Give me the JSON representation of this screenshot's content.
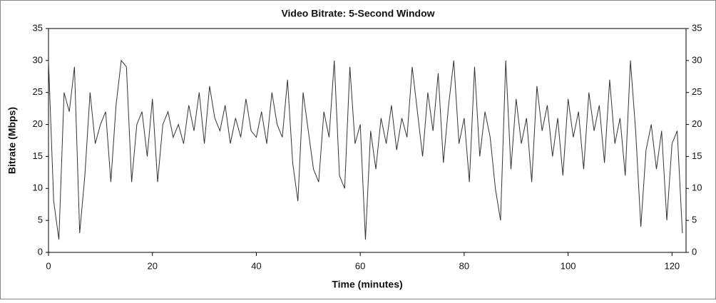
{
  "chart_data": {
    "type": "line",
    "title": "Video Bitrate: 5-Second Window",
    "x_label": "Time (minutes)",
    "y_label": "Bitrate (Mbps)",
    "x": [
      0,
      1,
      2,
      3,
      4,
      5,
      6,
      7,
      8,
      9,
      10,
      11,
      12,
      13,
      14,
      15,
      16,
      17,
      18,
      19,
      20,
      21,
      22,
      23,
      24,
      25,
      26,
      27,
      28,
      29,
      30,
      31,
      32,
      33,
      34,
      35,
      36,
      37,
      38,
      39,
      40,
      41,
      42,
      43,
      44,
      45,
      46,
      47,
      48,
      49,
      50,
      51,
      52,
      53,
      54,
      55,
      56,
      57,
      58,
      59,
      60,
      61,
      62,
      63,
      64,
      65,
      66,
      67,
      68,
      69,
      70,
      71,
      72,
      73,
      74,
      75,
      76,
      77,
      78,
      79,
      80,
      81,
      82,
      83,
      84,
      85,
      86,
      87,
      88,
      89,
      90,
      91,
      92,
      93,
      94,
      95,
      96,
      97,
      98,
      99,
      100,
      101,
      102,
      103,
      104,
      105,
      106,
      107,
      108,
      109,
      110,
      111,
      112,
      113,
      114,
      115,
      116,
      117,
      118,
      119,
      120,
      121,
      122
    ],
    "series": [
      {
        "color": "#333333",
        "values": [
          30,
          8,
          2,
          25,
          22,
          29,
          3,
          12,
          25,
          17,
          20,
          22,
          11,
          23,
          30,
          29,
          11,
          20,
          22,
          15,
          24,
          11,
          20,
          22,
          18,
          20,
          17,
          23,
          19,
          25,
          17,
          26,
          21,
          19,
          23,
          17,
          21,
          18,
          24,
          19,
          18,
          22,
          17,
          25,
          20,
          18,
          27,
          14,
          8,
          25,
          19,
          13,
          11,
          22,
          18,
          30,
          12,
          10,
          29,
          17,
          20,
          2,
          19,
          13,
          21,
          17,
          23,
          16,
          21,
          18,
          29,
          22,
          15,
          25,
          19,
          28,
          14,
          23,
          30,
          17,
          21,
          11,
          29,
          15,
          22,
          18,
          10,
          5,
          30,
          13,
          24,
          17,
          21,
          11,
          26,
          19,
          23,
          15,
          21,
          12,
          24,
          18,
          22,
          13,
          25,
          19,
          23,
          14,
          27,
          17,
          21,
          12,
          30,
          19,
          4,
          16,
          20,
          13,
          19,
          5,
          17,
          19,
          3
        ]
      }
    ],
    "xlim": [
      0,
      122.7
    ],
    "xticks": [
      0,
      20,
      40,
      60,
      80,
      100,
      120
    ],
    "ylim": [
      0,
      35
    ],
    "yticks": [
      0,
      5,
      10,
      15,
      20,
      25,
      30,
      35
    ],
    "y2lim": [
      0,
      35
    ],
    "y2ticks": [
      0,
      5,
      10,
      15,
      20,
      25,
      30,
      35
    ],
    "grid": false
  }
}
